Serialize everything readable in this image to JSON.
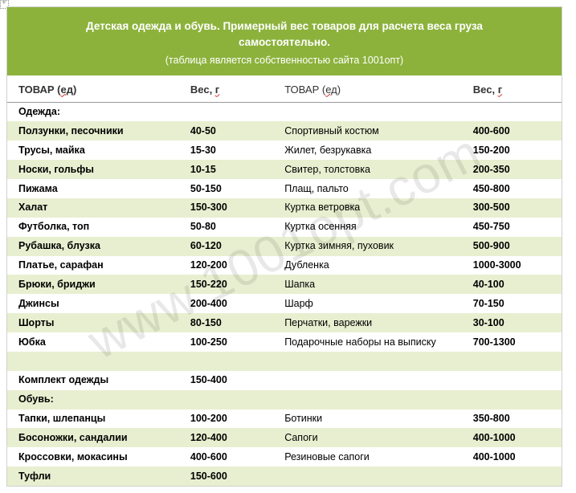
{
  "header": {
    "title_line1": "Детская одежда и обувь. Примерный вес товаров для расчета веса груза",
    "title_line2": "самостоятельно.",
    "subtitle": "(таблица является собственностью сайта 1001опт)"
  },
  "colheads": {
    "c1a": "ТОВАР (",
    "c1b": "ед",
    "c1c": ")",
    "c2a": "Вес, ",
    "c2b": "г",
    "c3a": "ТОВАР (",
    "c3b": "ед",
    "c3c": ")",
    "c4a": "Вес, ",
    "c4b": "г"
  },
  "watermark": "www.1001opt.com",
  "colors": {
    "header_bg": "#8cb23c",
    "stripe_bg": "#e8efd0"
  },
  "rows": [
    {
      "stripe": false,
      "section": true,
      "c1": "Одежда:",
      "c2": "",
      "c3": "",
      "c4": ""
    },
    {
      "stripe": true,
      "c1": "Ползунки, песочники",
      "c2": "40-50",
      "c3": "Спортивный костюм",
      "c4": "400-600"
    },
    {
      "stripe": false,
      "c1": "Трусы, майка",
      "c2": "15-30",
      "c3": "Жилет, безрукавка",
      "c4": "150-200"
    },
    {
      "stripe": true,
      "c1": "Носки, гольфы",
      "c2": "10-15",
      "c3": "Свитер, толстовка",
      "c4": "200-350"
    },
    {
      "stripe": false,
      "c1": "Пижама",
      "c2": "50-150",
      "c3": "Плащ, пальто",
      "c4": "450-800"
    },
    {
      "stripe": true,
      "c1": "Халат",
      "c2": "150-300",
      "c3": "Куртка ветровка",
      "c4": "300-500"
    },
    {
      "stripe": false,
      "c1": "Футболка, топ",
      "c2": "50-80",
      "c3": "Куртка осенняя",
      "c4": "450-750"
    },
    {
      "stripe": true,
      "c1": "Рубашка, блузка",
      "c2": "60-120",
      "c3": "Куртка зимняя, пуховик",
      "c4": "500-900"
    },
    {
      "stripe": false,
      "c1": "Платье, сарафан",
      "c2": "120-200",
      "c3": "Дубленка",
      "c4": "1000-3000"
    },
    {
      "stripe": true,
      "c1": "Брюки, бриджи",
      "c2": "150-220",
      "c3": "Шапка",
      "c4": "40-100"
    },
    {
      "stripe": false,
      "c1": "Джинсы",
      "c2": "200-400",
      "c3": "Шарф",
      "c4": "70-150"
    },
    {
      "stripe": true,
      "c1": "Шорты",
      "c2": "80-150",
      "c3": "Перчатки, варежки",
      "c4": "30-100"
    },
    {
      "stripe": false,
      "c1": "Юбка",
      "c2": "100-250",
      "c3": "Подарочные наборы на выписку",
      "c4": "700-1300"
    },
    {
      "stripe": true,
      "c1": "",
      "c2": "",
      "c3": "",
      "c4": ""
    },
    {
      "stripe": false,
      "c1": "Комплект одежды",
      "c2": "150-400",
      "c3": "",
      "c4": ""
    },
    {
      "stripe": true,
      "section": true,
      "c1": "Обувь:",
      "c2": "",
      "c3": "",
      "c4": ""
    },
    {
      "stripe": false,
      "c1": "Тапки, шлепанцы",
      "c2": "100-200",
      "c3": "Ботинки",
      "c4": "350-800"
    },
    {
      "stripe": true,
      "c1": "Босоножки, сандалии",
      "c2": "120-400",
      "c3": "Сапоги",
      "c4": "400-1000"
    },
    {
      "stripe": false,
      "c1": "Кроссовки, мокасины",
      "c2": "400-600",
      "c3": "Резиновые сапоги",
      "c4": "400-1000"
    },
    {
      "stripe": true,
      "c1": "Туфли",
      "c2": "150-600",
      "c3": "",
      "c4": ""
    }
  ]
}
